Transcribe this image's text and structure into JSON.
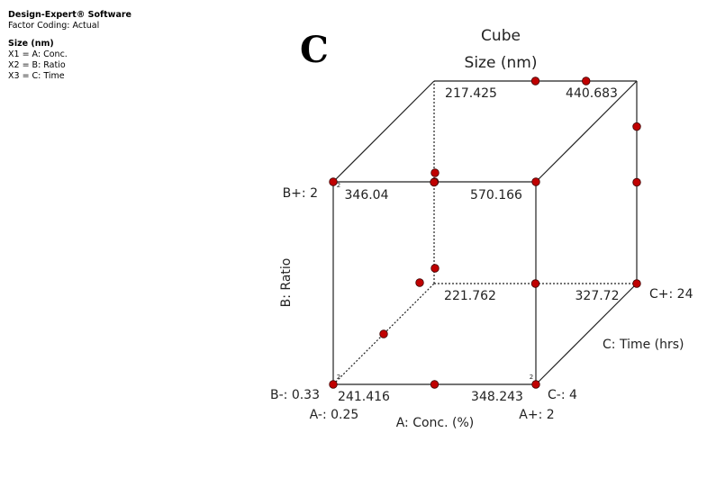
{
  "software": {
    "title": "Design-Expert® Software",
    "coding": "Factor Coding: Actual"
  },
  "response": {
    "name": "Size (nm)",
    "factors": [
      "X1 = A: Conc.",
      "X2 = B: Ratio",
      "X3 = C: Time"
    ]
  },
  "panel_letter": "C",
  "chart_data": {
    "type": "cube",
    "title": "Cube",
    "subtitle": "Size (nm)",
    "axes": {
      "A": {
        "label": "A: Conc. (%)",
        "low": "A-: 0.25",
        "high": "A+: 2"
      },
      "B": {
        "label": "B: Ratio",
        "low": "B-: 0.33",
        "high": "B+: 2"
      },
      "C": {
        "label": "C: Time (hrs)",
        "low": "C-: 4",
        "high": "C+: 24"
      }
    },
    "corners": [
      {
        "A": -1,
        "B": -1,
        "C": -1,
        "value": "241.416",
        "replicates": 2
      },
      {
        "A": 1,
        "B": -1,
        "C": -1,
        "value": "348.243",
        "replicates": 2
      },
      {
        "A": -1,
        "B": 1,
        "C": -1,
        "value": "346.04",
        "replicates": 2
      },
      {
        "A": 1,
        "B": 1,
        "C": -1,
        "value": "570.166",
        "replicates": 1
      },
      {
        "A": -1,
        "B": -1,
        "C": 1,
        "value": "221.762",
        "replicates": 1
      },
      {
        "A": 1,
        "B": -1,
        "C": 1,
        "value": "327.72",
        "replicates": 1
      },
      {
        "A": -1,
        "B": 1,
        "C": 1,
        "value": "217.425",
        "replicates": 1
      },
      {
        "A": 1,
        "B": 1,
        "C": 1,
        "value": "440.683",
        "replicates": 1
      }
    ],
    "design_points": [
      {
        "A": -1,
        "B": -1,
        "C": -1
      },
      {
        "A": 1,
        "B": -1,
        "C": -1
      },
      {
        "A": -1,
        "B": 1,
        "C": -1
      },
      {
        "A": 1,
        "B": 1,
        "C": -1
      },
      {
        "A": 0,
        "B": -1,
        "C": -1
      },
      {
        "A": 0,
        "B": 1,
        "C": -1
      },
      {
        "A": 0,
        "B": 1,
        "C": 1
      },
      {
        "A": 1,
        "B": 0,
        "C": 1
      },
      {
        "A": 1,
        "B": -1,
        "C": 1
      },
      {
        "A": 0,
        "B": -1,
        "C": 1
      },
      {
        "A": -1,
        "B": 0,
        "C": 1
      },
      {
        "A": -1,
        "B": -1,
        "C": 0
      },
      {
        "A": 0.5,
        "B": 1,
        "C": 1
      },
      {
        "A": 1,
        "B": 0.55,
        "C": 1
      }
    ],
    "point_color": "#c00000",
    "edge_color": "#222222"
  }
}
